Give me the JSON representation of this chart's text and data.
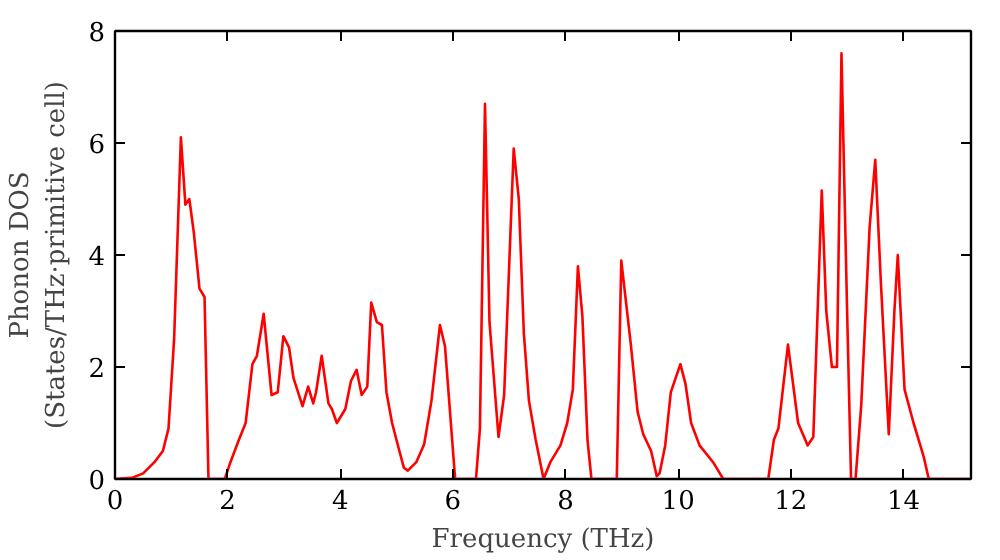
{
  "chart_data": {
    "type": "line",
    "xlabel": "Frequency (THz)",
    "ylabel": "Phonon DOS\n(States/THz·primitive cell)",
    "xlim": [
      0,
      15.2
    ],
    "ylim": [
      0,
      8
    ],
    "xticks": [
      0,
      2,
      4,
      6,
      8,
      10,
      12,
      14
    ],
    "yticks": [
      0,
      2,
      4,
      6,
      8
    ],
    "grid": false,
    "series": [
      {
        "color": "#ff0000",
        "x": [
          0,
          0.3,
          0.5,
          0.7,
          0.85,
          0.95,
          1.05,
          1.17,
          1.25,
          1.32,
          1.4,
          1.5,
          1.59,
          1.66,
          1.95,
          2.05,
          2.2,
          2.32,
          2.44,
          2.52,
          2.64,
          2.78,
          2.89,
          2.99,
          3.09,
          3.17,
          3.33,
          3.43,
          3.52,
          3.57,
          3.67,
          3.79,
          3.85,
          3.94,
          4.09,
          4.19,
          4.29,
          4.38,
          4.48,
          4.55,
          4.65,
          4.74,
          4.82,
          4.92,
          5.05,
          5.13,
          5.2,
          5.35,
          5.49,
          5.62,
          5.77,
          5.86,
          6.04,
          6.41,
          6.48,
          6.57,
          6.65,
          6.81,
          6.91,
          7.08,
          7.17,
          7.26,
          7.35,
          7.47,
          7.61,
          7.73,
          7.91,
          8.03,
          8.13,
          8.22,
          8.3,
          8.39,
          8.46,
          8.91,
          8.99,
          9.16,
          9.28,
          9.38,
          9.52,
          9.62,
          9.67,
          9.77,
          9.87,
          10.04,
          10.13,
          10.23,
          10.38,
          10.62,
          10.8,
          11.6,
          11.7,
          11.78,
          11.95,
          12.13,
          12.3,
          12.4,
          12.55,
          12.63,
          12.73,
          12.82,
          12.9,
          13.0,
          13.07,
          13.15,
          13.25,
          13.4,
          13.5,
          13.6,
          13.74,
          13.84,
          13.9,
          14.02,
          14.18,
          14.36,
          14.45,
          15.2
        ],
        "values": [
          0,
          0.02,
          0.1,
          0.3,
          0.5,
          0.9,
          2.5,
          6.1,
          4.9,
          5.0,
          4.4,
          3.4,
          3.25,
          0,
          0,
          0.3,
          0.7,
          1.0,
          2.05,
          2.2,
          2.95,
          1.5,
          1.55,
          2.55,
          2.35,
          1.8,
          1.3,
          1.65,
          1.35,
          1.55,
          2.2,
          1.35,
          1.25,
          1.0,
          1.25,
          1.75,
          1.95,
          1.5,
          1.65,
          3.15,
          2.8,
          2.75,
          1.55,
          1.0,
          0.5,
          0.2,
          0.15,
          0.3,
          0.62,
          1.4,
          2.75,
          2.37,
          0,
          0,
          0.9,
          6.7,
          2.8,
          0.75,
          1.5,
          5.9,
          5.0,
          2.6,
          1.4,
          0.7,
          0,
          0.3,
          0.6,
          1.0,
          1.6,
          3.8,
          2.9,
          0.7,
          0,
          0,
          3.9,
          2.4,
          1.2,
          0.8,
          0.5,
          0.05,
          0.1,
          0.6,
          1.55,
          2.05,
          1.7,
          1.0,
          0.6,
          0.3,
          0,
          0,
          0.7,
          0.9,
          2.4,
          1.0,
          0.6,
          0.75,
          5.15,
          3.0,
          2.0,
          2.0,
          7.6,
          3.0,
          0,
          0,
          1.3,
          4.5,
          5.7,
          3.5,
          0.8,
          3.0,
          4.0,
          1.6,
          1.0,
          0.4,
          0,
          0
        ]
      }
    ]
  }
}
